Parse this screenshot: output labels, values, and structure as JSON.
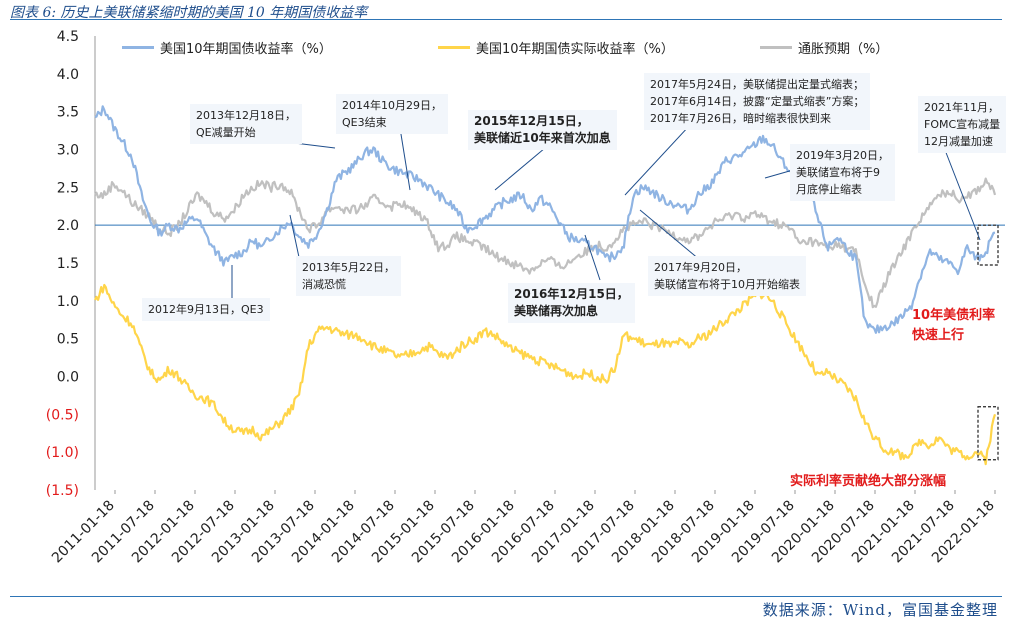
{
  "title": "图表 6:  历史上美联储紧缩时期的美国 10 年期国债收益率",
  "source": "数据来源：Wind，富国基金整理",
  "colors": {
    "nominal": "#8fb4e3",
    "real": "#ffd54a",
    "breakeven": "#c0c0c0",
    "ref_line": "#2e75b6",
    "red": "#e21b1b"
  },
  "chart_data": {
    "type": "line",
    "title": "历史上美联储紧缩时期的美国 10 年期国债收益率",
    "ylim": [
      -1.5,
      4.5
    ],
    "yticks": [
      "4.5",
      "4.0",
      "3.5",
      "3.0",
      "2.5",
      "2.0",
      "1.5",
      "1.0",
      "0.5",
      "0.0",
      "(0.5)",
      "(1.0)",
      "(1.5)"
    ],
    "ytick_values": [
      4.5,
      4.0,
      3.5,
      3.0,
      2.5,
      2.0,
      1.5,
      1.0,
      0.5,
      0.0,
      -0.5,
      -1.0,
      -1.5
    ],
    "xticks": [
      "2011-01-18",
      "2011-07-18",
      "2012-01-18",
      "2012-07-18",
      "2013-01-18",
      "2013-07-18",
      "2014-01-18",
      "2014-07-18",
      "2015-01-18",
      "2015-07-18",
      "2016-01-18",
      "2016-07-18",
      "2017-01-18",
      "2017-07-18",
      "2018-01-18",
      "2018-07-18",
      "2019-01-18",
      "2019-07-18",
      "2020-01-18",
      "2020-07-18",
      "2021-01-18",
      "2021-07-18",
      "2022-01-18"
    ],
    "reference_line": 2.0,
    "series": [
      {
        "name": "美国10年期国债收益率（%）",
        "values": [
          3.4,
          3.55,
          3.3,
          3.1,
          2.9,
          2.4,
          2.05,
          1.9,
          2.0,
          1.95,
          2.05,
          2.1,
          1.85,
          1.65,
          1.5,
          1.6,
          1.65,
          1.8,
          1.7,
          1.85,
          1.95,
          2.05,
          1.85,
          1.75,
          1.9,
          2.2,
          2.6,
          2.7,
          2.8,
          2.95,
          3.0,
          2.85,
          2.75,
          2.7,
          2.65,
          2.6,
          2.5,
          2.4,
          2.3,
          2.2,
          1.95,
          2.0,
          2.1,
          2.2,
          2.3,
          2.35,
          2.4,
          2.2,
          2.35,
          2.25,
          2.05,
          1.85,
          1.8,
          1.75,
          1.7,
          1.55,
          1.6,
          1.75,
          2.4,
          2.5,
          2.45,
          2.35,
          2.3,
          2.25,
          2.2,
          2.4,
          2.5,
          2.65,
          2.85,
          2.9,
          2.95,
          3.05,
          3.15,
          3.05,
          2.85,
          2.7,
          2.6,
          2.45,
          2.05,
          1.7,
          1.85,
          1.7,
          1.55,
          0.7,
          0.6,
          0.65,
          0.7,
          0.8,
          0.95,
          1.35,
          1.65,
          1.55,
          1.5,
          1.4,
          1.7,
          1.55,
          1.65,
          1.9
        ]
      },
      {
        "name": "美国10年期国债实际收益率（%）",
        "values": [
          1.0,
          1.2,
          0.95,
          0.8,
          0.7,
          0.35,
          0.05,
          -0.05,
          0.1,
          0.0,
          -0.15,
          -0.25,
          -0.3,
          -0.4,
          -0.6,
          -0.7,
          -0.75,
          -0.7,
          -0.8,
          -0.7,
          -0.6,
          -0.45,
          -0.25,
          0.4,
          0.6,
          0.65,
          0.6,
          0.55,
          0.55,
          0.5,
          0.4,
          0.35,
          0.3,
          0.25,
          0.3,
          0.35,
          0.4,
          0.3,
          0.25,
          0.35,
          0.45,
          0.5,
          0.6,
          0.55,
          0.45,
          0.35,
          0.3,
          0.25,
          0.2,
          0.15,
          0.1,
          0.05,
          0.0,
          0.05,
          0.0,
          -0.05,
          0.1,
          0.55,
          0.5,
          0.45,
          0.4,
          0.45,
          0.4,
          0.45,
          0.4,
          0.5,
          0.55,
          0.65,
          0.75,
          0.85,
          0.95,
          1.05,
          1.1,
          1.0,
          0.8,
          0.6,
          0.4,
          0.2,
          0.0,
          0.05,
          -0.05,
          -0.15,
          -0.3,
          -0.6,
          -0.8,
          -0.95,
          -1.0,
          -1.05,
          -1.0,
          -0.85,
          -0.9,
          -0.8,
          -0.95,
          -1.0,
          -1.05,
          -1.0,
          -1.1,
          -0.5
        ]
      },
      {
        "name": "通胀预期（%）",
        "values": [
          2.4,
          2.4,
          2.55,
          2.45,
          2.3,
          2.2,
          2.1,
          1.95,
          1.9,
          2.0,
          2.2,
          2.4,
          2.3,
          2.15,
          2.1,
          2.2,
          2.4,
          2.5,
          2.55,
          2.5,
          2.55,
          2.45,
          2.2,
          1.95,
          2.0,
          2.2,
          2.25,
          2.2,
          2.2,
          2.25,
          2.35,
          2.3,
          2.25,
          2.3,
          2.2,
          2.15,
          2.0,
          1.7,
          1.75,
          1.85,
          1.8,
          1.75,
          1.7,
          1.6,
          1.55,
          1.5,
          1.45,
          1.4,
          1.5,
          1.55,
          1.45,
          1.5,
          1.6,
          1.65,
          1.75,
          1.7,
          1.8,
          1.95,
          2.0,
          2.05,
          2.0,
          1.95,
          1.9,
          1.85,
          1.8,
          1.85,
          1.95,
          2.05,
          2.1,
          2.15,
          2.1,
          2.15,
          2.1,
          2.05,
          2.0,
          1.95,
          1.75,
          1.8,
          1.75,
          1.7,
          1.75,
          1.7,
          1.65,
          1.2,
          0.9,
          1.2,
          1.45,
          1.65,
          1.9,
          2.1,
          2.25,
          2.4,
          2.45,
          2.35,
          2.4,
          2.45,
          2.6,
          2.4
        ]
      }
    ]
  },
  "legend": [
    {
      "label": "美国10年期国债收益率（%）"
    },
    {
      "label": "美国10年期国债实际收益率（%）"
    },
    {
      "label": "通胀预期（%）"
    }
  ],
  "annotations": {
    "a_2013_12": "2013年12月18日，\nQE减量开始",
    "a_2014_10": "2014年10月29日，\nQE3结束",
    "a_2015_12": "2015年12月15日，\n美联储近10年来首次加息",
    "a_2017_05": "2017年5月24日，美联储提出定量式缩表；\n2017年6月14日，披露“定量式缩表”方案；\n2017年7月26日，暗时缩表很快到来",
    "a_2021_11": "2021年11月，\nFOMC宣布减量\n12月减量加速",
    "a_2019_03": "2019年3月20日，\n美联储宣布将于9\n月底停止缩表",
    "a_2012_09": "2012年9月13日，QE3",
    "a_2013_05": "2013年5月22日，\n消减恐慌",
    "a_2016_12": "2016年12月15日，\n美联储再次加息",
    "a_2017_09": "2017年9月20日，\n美联储宣布将于10月开始缩表"
  },
  "red_notes": {
    "n1": "10年美债利率\n快速上行",
    "n2": "实际利率贡献绝大部分涨幅"
  }
}
